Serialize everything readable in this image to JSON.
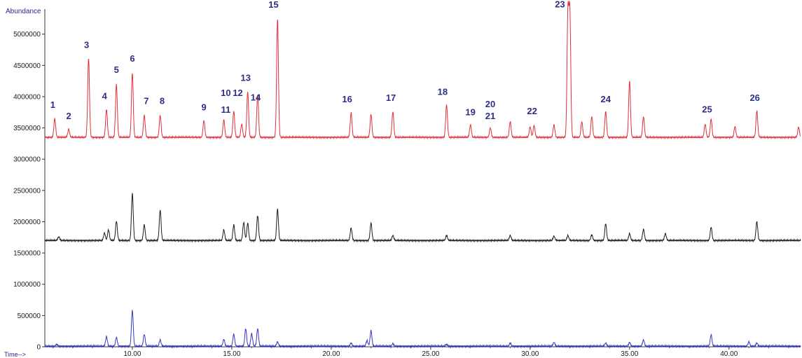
{
  "chart_data": {
    "type": "line",
    "ylabel": "Abundance",
    "xlabel": "Time-->",
    "xlim": [
      5.6,
      43.6
    ],
    "ylim": [
      0,
      5400000
    ],
    "x_ticks": [
      10,
      15,
      20,
      25,
      30,
      35,
      40
    ],
    "x_tick_labels": [
      "10.00",
      "15.00",
      "20.00",
      "25.00",
      "30.00",
      "35.00",
      "40.00"
    ],
    "y_ticks": [
      0,
      500000,
      1000000,
      1500000,
      2000000,
      2500000,
      3000000,
      3500000,
      4000000,
      4500000,
      5000000
    ],
    "y_tick_labels": [
      "0",
      "500000",
      "1000000",
      "1500000",
      "2000000",
      "2500000",
      "3000000",
      "3500000",
      "4000000",
      "4500000",
      "5000000"
    ],
    "grid": false,
    "series": [
      {
        "color": "#e0303a",
        "baseline": 3350000,
        "peaks": [
          [
            6.1,
            3650000
          ],
          [
            6.8,
            3480000
          ],
          [
            7.8,
            4620000
          ],
          [
            8.7,
            3800000
          ],
          [
            9.2,
            4200000
          ],
          [
            10.0,
            4380000
          ],
          [
            10.6,
            3700000
          ],
          [
            11.4,
            3700000
          ],
          [
            13.6,
            3620000
          ],
          [
            14.6,
            3630000
          ],
          [
            15.1,
            3770000
          ],
          [
            15.5,
            3560000
          ],
          [
            15.8,
            4080000
          ],
          [
            16.3,
            4030000
          ],
          [
            17.3,
            5250000
          ],
          [
            21.0,
            3740000
          ],
          [
            22.0,
            3720000
          ],
          [
            23.1,
            3760000
          ],
          [
            25.8,
            3870000
          ],
          [
            27.0,
            3550000
          ],
          [
            28.0,
            3500000
          ],
          [
            29.0,
            3600000
          ],
          [
            30.0,
            3520000
          ],
          [
            30.2,
            3540000
          ],
          [
            31.2,
            3550000
          ],
          [
            31.9,
            5300000
          ],
          [
            32.0,
            5300000
          ],
          [
            32.6,
            3600000
          ],
          [
            33.1,
            3680000
          ],
          [
            33.8,
            3760000
          ],
          [
            35.0,
            4250000
          ],
          [
            35.7,
            3680000
          ],
          [
            38.8,
            3560000
          ],
          [
            39.1,
            3640000
          ],
          [
            41.4,
            3770000
          ],
          [
            40.3,
            3520000
          ],
          [
            43.5,
            3510000
          ]
        ]
      },
      {
        "color": "#1a1a1a",
        "baseline": 1700000,
        "peaks": [
          [
            6.3,
            1760000
          ],
          [
            8.6,
            1820000
          ],
          [
            8.8,
            1870000
          ],
          [
            9.2,
            2010000
          ],
          [
            10.0,
            2450000
          ],
          [
            10.6,
            1950000
          ],
          [
            11.4,
            2190000
          ],
          [
            14.6,
            1870000
          ],
          [
            15.1,
            1950000
          ],
          [
            15.6,
            1990000
          ],
          [
            15.8,
            1980000
          ],
          [
            16.3,
            2100000
          ],
          [
            17.3,
            2200000
          ],
          [
            21.0,
            1900000
          ],
          [
            22.0,
            1980000
          ],
          [
            23.1,
            1780000
          ],
          [
            25.8,
            1780000
          ],
          [
            29.0,
            1780000
          ],
          [
            31.2,
            1770000
          ],
          [
            31.9,
            1780000
          ],
          [
            33.1,
            1790000
          ],
          [
            33.8,
            1970000
          ],
          [
            35.0,
            1810000
          ],
          [
            35.7,
            1880000
          ],
          [
            36.8,
            1810000
          ],
          [
            39.1,
            1910000
          ],
          [
            41.4,
            2000000
          ]
        ]
      },
      {
        "color": "#3a36c0",
        "baseline": 10000,
        "peaks": [
          [
            6.2,
            40000
          ],
          [
            8.7,
            160000
          ],
          [
            9.2,
            150000
          ],
          [
            10.0,
            580000
          ],
          [
            10.6,
            200000
          ],
          [
            11.4,
            110000
          ],
          [
            14.6,
            120000
          ],
          [
            15.1,
            200000
          ],
          [
            15.7,
            290000
          ],
          [
            16.0,
            210000
          ],
          [
            16.3,
            290000
          ],
          [
            17.3,
            80000
          ],
          [
            21.0,
            60000
          ],
          [
            22.0,
            260000
          ],
          [
            21.8,
            100000
          ],
          [
            23.1,
            50000
          ],
          [
            25.8,
            40000
          ],
          [
            29.0,
            60000
          ],
          [
            31.2,
            70000
          ],
          [
            33.8,
            60000
          ],
          [
            35.0,
            70000
          ],
          [
            35.7,
            110000
          ],
          [
            39.1,
            190000
          ],
          [
            41.0,
            80000
          ],
          [
            41.4,
            60000
          ]
        ]
      }
    ],
    "annotations": [
      {
        "text": "1",
        "x": 6.0,
        "y": 3820000
      },
      {
        "text": "2",
        "x": 6.8,
        "y": 3640000
      },
      {
        "text": "3",
        "x": 7.7,
        "y": 4780000
      },
      {
        "text": "4",
        "x": 8.6,
        "y": 3960000
      },
      {
        "text": "5",
        "x": 9.2,
        "y": 4380000
      },
      {
        "text": "6",
        "x": 10.0,
        "y": 4560000
      },
      {
        "text": "7",
        "x": 10.7,
        "y": 3880000
      },
      {
        "text": "8",
        "x": 11.5,
        "y": 3880000
      },
      {
        "text": "9",
        "x": 13.6,
        "y": 3780000
      },
      {
        "text": "10",
        "x": 14.7,
        "y": 4010000
      },
      {
        "text": "11",
        "x": 14.7,
        "y": 3740000
      },
      {
        "text": "12",
        "x": 15.3,
        "y": 4010000
      },
      {
        "text": "13",
        "x": 15.7,
        "y": 4250000
      },
      {
        "text": "14",
        "x": 16.2,
        "y": 3940000
      },
      {
        "text": "15",
        "x": 17.1,
        "y": 5420000
      },
      {
        "text": "16",
        "x": 20.8,
        "y": 3910000
      },
      {
        "text": "17",
        "x": 23.0,
        "y": 3930000
      },
      {
        "text": "18",
        "x": 25.6,
        "y": 4030000
      },
      {
        "text": "19",
        "x": 27.0,
        "y": 3700000
      },
      {
        "text": "20",
        "x": 28.0,
        "y": 3830000
      },
      {
        "text": "21",
        "x": 28.0,
        "y": 3640000
      },
      {
        "text": "22",
        "x": 30.1,
        "y": 3720000
      },
      {
        "text": "23",
        "x": 31.5,
        "y": 5430000
      },
      {
        "text": "24",
        "x": 33.8,
        "y": 3910000
      },
      {
        "text": "25",
        "x": 38.9,
        "y": 3750000
      },
      {
        "text": "26",
        "x": 41.3,
        "y": 3930000
      }
    ]
  }
}
